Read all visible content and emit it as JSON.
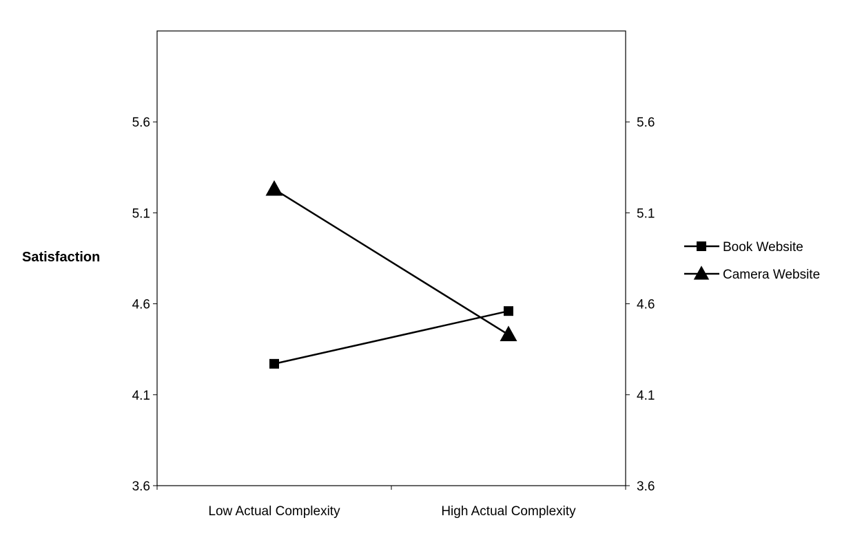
{
  "chart_data": {
    "type": "line",
    "categories": [
      "Low Actual Complexity",
      "High Actual Complexity"
    ],
    "series": [
      {
        "name": "Book Website",
        "marker": "square",
        "values": [
          4.27,
          4.56
        ]
      },
      {
        "name": "Camera Website",
        "marker": "triangle",
        "values": [
          5.23,
          4.43
        ]
      }
    ],
    "ylabel": "Satisfaction",
    "xlabel": "",
    "title": "",
    "ylim": [
      3.6,
      6.1
    ],
    "yticks": [
      "3.6",
      "4.1",
      "4.6",
      "5.1",
      "5.6"
    ],
    "secondary_yticks": [
      "3.6",
      "4.1",
      "4.6",
      "5.1",
      "5.6"
    ],
    "grid": false,
    "legend_position": "right",
    "line_color": "#000000"
  }
}
